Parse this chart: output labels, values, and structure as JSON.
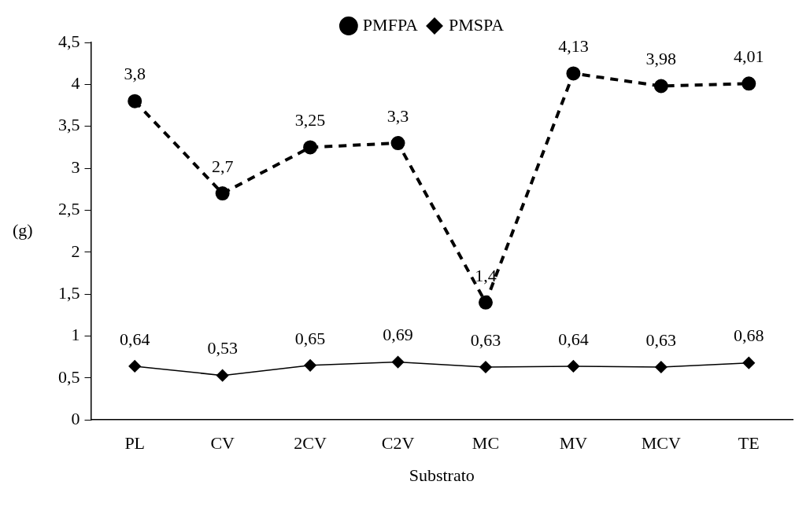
{
  "chart_data": {
    "type": "line",
    "xlabel": "Substrato",
    "ylabel": "(g)",
    "categories": [
      "PL",
      "CV",
      "2CV",
      "C2V",
      "MC",
      "MV",
      "MCV",
      "TE"
    ],
    "series": [
      {
        "name": "PMFPA",
        "color": "#000000",
        "line_style": "dashed",
        "marker": "circle",
        "values": [
          3.8,
          2.7,
          3.25,
          3.3,
          1.4,
          4.13,
          3.98,
          4.01
        ],
        "value_labels": [
          "3,8",
          "2,7",
          "3,25",
          "3,3",
          "1,4",
          "4,13",
          "3,98",
          "4,01"
        ]
      },
      {
        "name": "PMSPA",
        "color": "#000000",
        "line_style": "solid",
        "marker": "diamond",
        "values": [
          0.64,
          0.53,
          0.65,
          0.69,
          0.63,
          0.64,
          0.63,
          0.68
        ],
        "value_labels": [
          "0,64",
          "0,53",
          "0,65",
          "0,69",
          "0,63",
          "0,64",
          "0,63",
          "0,68"
        ]
      }
    ],
    "ylim": [
      0,
      4.5
    ],
    "yticks": [
      0,
      {
        "value": 0.5,
        "label": "0,5"
      },
      1,
      {
        "value": 1.5,
        "label": "1,5"
      },
      2,
      {
        "value": 2.5,
        "label": "2,5"
      },
      3,
      {
        "value": 3.5,
        "label": "3,5"
      },
      4,
      {
        "value": 4.5,
        "label": "4,5"
      }
    ],
    "grid": false,
    "legend": "top"
  }
}
